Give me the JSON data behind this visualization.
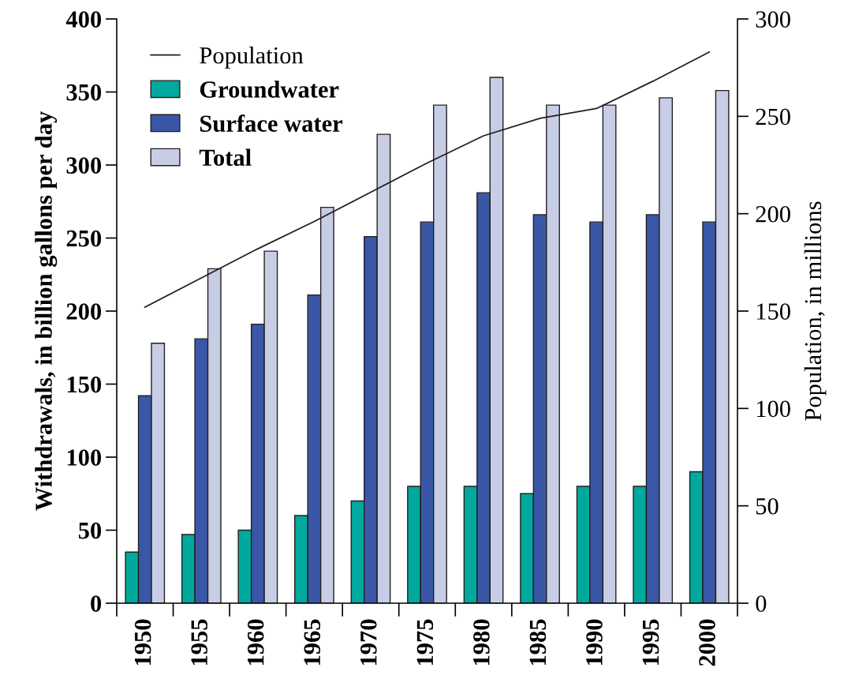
{
  "chart_data": {
    "type": "bar",
    "ylabel": "Withdrawals, in billion gallons per day",
    "y2label": "Population, in millions",
    "categories": [
      "1950",
      "1955",
      "1960",
      "1965",
      "1970",
      "1975",
      "1980",
      "1985",
      "1990",
      "1995",
      "2000"
    ],
    "series": [
      {
        "name": "Population",
        "type": "line",
        "axis": "y2",
        "color": "#231f20",
        "values": [
          152,
          167,
          182,
          196,
          211,
          226,
          240,
          249,
          254,
          268,
          283
        ]
      },
      {
        "name": "Groundwater",
        "color": "#00a99d",
        "values": [
          35,
          47,
          50,
          60,
          70,
          80,
          80,
          75,
          80,
          80,
          90
        ]
      },
      {
        "name": "Surface water",
        "color": "#3a57a7",
        "values": [
          142,
          181,
          191,
          211,
          251,
          261,
          281,
          266,
          261,
          266,
          261
        ]
      },
      {
        "name": "Total",
        "color": "#c8cde6",
        "values": [
          178,
          229,
          241,
          271,
          321,
          341,
          360,
          341,
          341,
          346,
          351
        ]
      }
    ],
    "ylim": [
      0,
      400
    ],
    "yticks": [
      0,
      50,
      100,
      150,
      200,
      250,
      300,
      350,
      400
    ],
    "y2lim": [
      0,
      300
    ],
    "y2ticks": [
      0,
      50,
      100,
      150,
      200,
      250,
      300
    ],
    "legend": "top left",
    "grid": false
  }
}
